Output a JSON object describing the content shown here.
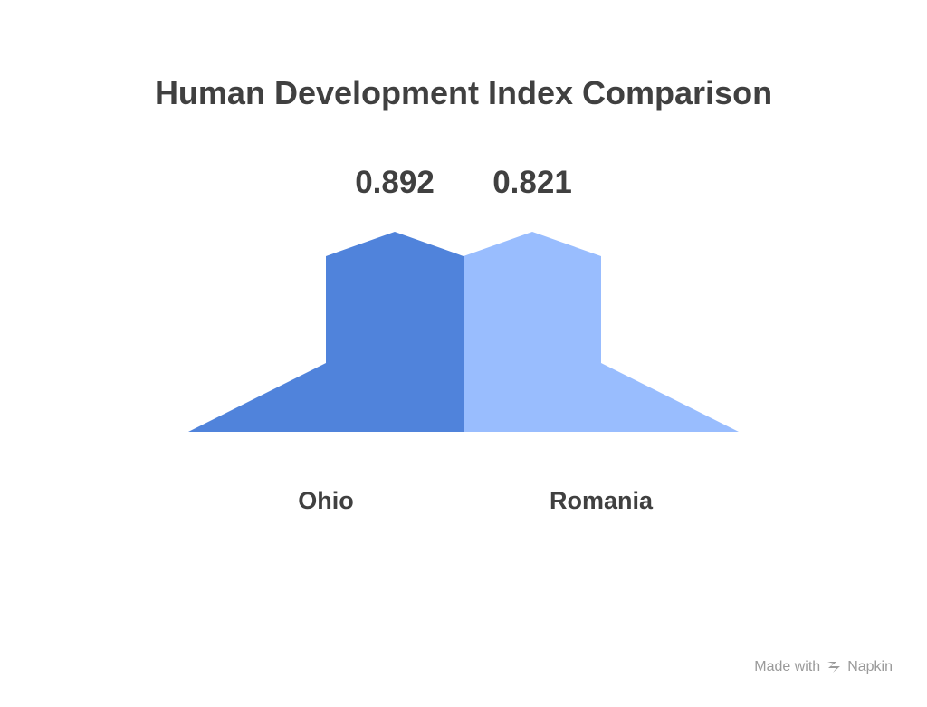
{
  "chart_data": {
    "type": "bar",
    "title": "Human Development Index Comparison",
    "categories": [
      "Ohio",
      "Romania"
    ],
    "values": [
      0.892,
      0.821
    ],
    "value_labels": [
      "0.892",
      "0.821"
    ],
    "colors": [
      "#5083db",
      "#99bdfe"
    ],
    "xlabel": "",
    "ylabel": "",
    "grid": false,
    "legend": "none"
  },
  "watermark": {
    "prefix": "Made with",
    "brand": "Napkin",
    "icon": "napkin-logo-icon"
  }
}
